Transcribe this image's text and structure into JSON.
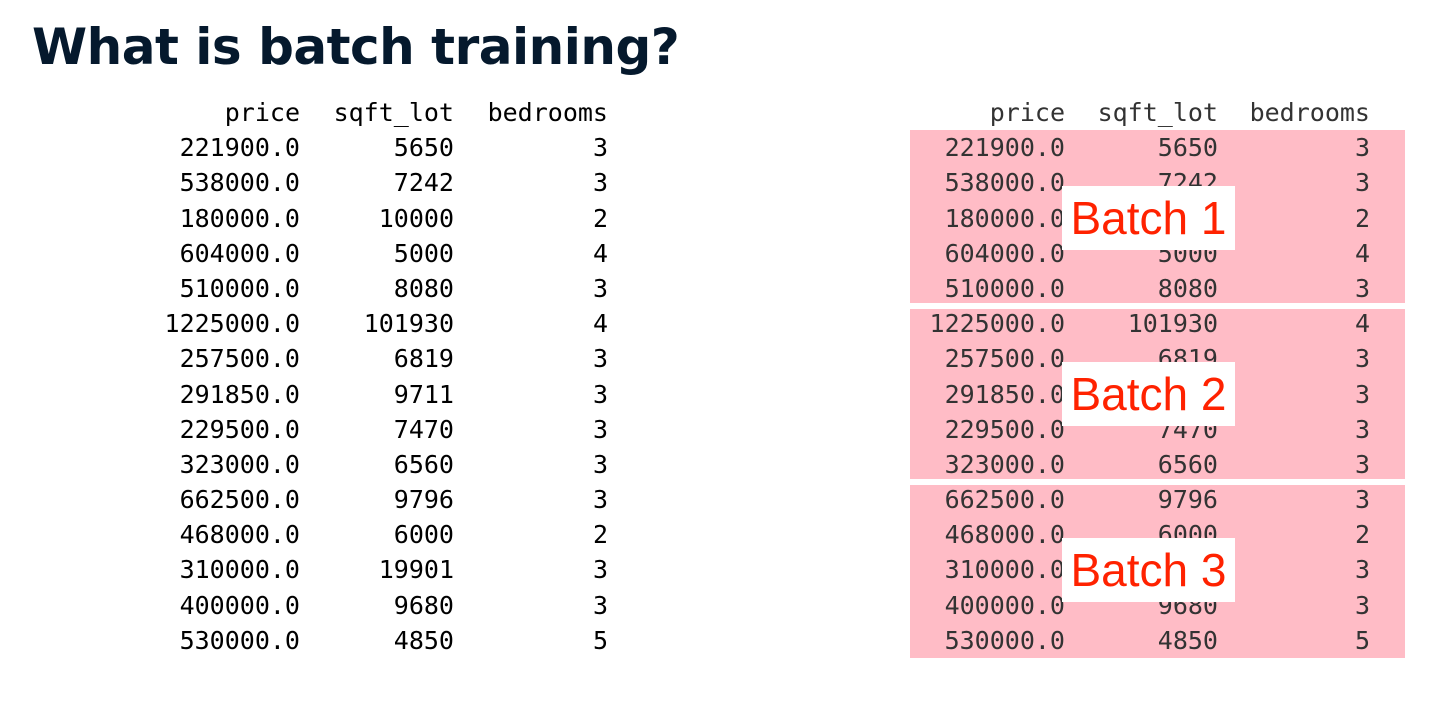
{
  "slide": {
    "title": "What is batch training?"
  },
  "table": {
    "columns": [
      "price",
      "sqft_lot",
      "bedrooms"
    ],
    "rows": [
      [
        "221900.0",
        "5650",
        "3"
      ],
      [
        "538000.0",
        "7242",
        "3"
      ],
      [
        "180000.0",
        "10000",
        "2"
      ],
      [
        "604000.0",
        "5000",
        "4"
      ],
      [
        "510000.0",
        "8080",
        "3"
      ],
      [
        "1225000.0",
        "101930",
        "4"
      ],
      [
        "257500.0",
        "6819",
        "3"
      ],
      [
        "291850.0",
        "9711",
        "3"
      ],
      [
        "229500.0",
        "7470",
        "3"
      ],
      [
        "323000.0",
        "6560",
        "3"
      ],
      [
        "662500.0",
        "9796",
        "3"
      ],
      [
        "468000.0",
        "6000",
        "2"
      ],
      [
        "310000.0",
        "19901",
        "3"
      ],
      [
        "400000.0",
        "9680",
        "3"
      ],
      [
        "530000.0",
        "4850",
        "5"
      ]
    ]
  },
  "batches": [
    {
      "label": "Batch 1",
      "start": 0,
      "end": 4
    },
    {
      "label": "Batch 2",
      "start": 5,
      "end": 9
    },
    {
      "label": "Batch 3",
      "start": 10,
      "end": 14
    }
  ],
  "colors": {
    "title": "#05192d",
    "batch_band": "#ffbcc6",
    "batch_label": "#ff2200"
  }
}
